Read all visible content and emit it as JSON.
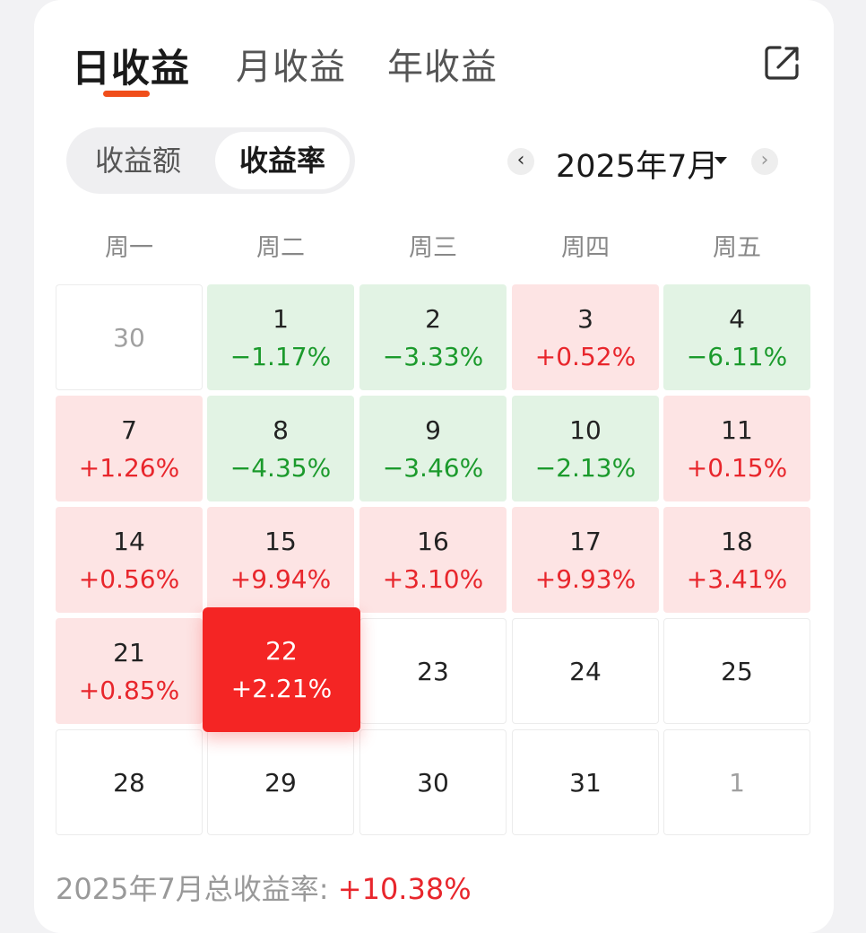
{
  "tabs": [
    {
      "label": "日收益",
      "active": true
    },
    {
      "label": "月收益",
      "active": false
    },
    {
      "label": "年收益",
      "active": false
    }
  ],
  "share_icon": "share-icon",
  "segment": {
    "options": [
      "收益额",
      "收益率"
    ],
    "selected": "收益率"
  },
  "month_nav": {
    "prev_icon": "chevron-left-icon",
    "next_icon": "chevron-right-icon",
    "label": "2025年7月",
    "dropdown_icon": "caret-down-icon"
  },
  "weekdays": [
    "周一",
    "周二",
    "周三",
    "周四",
    "周五"
  ],
  "calendar": [
    [
      {
        "day": "30",
        "pct": "",
        "state": "empty-dim"
      },
      {
        "day": "1",
        "pct": "−1.17%",
        "state": "down"
      },
      {
        "day": "2",
        "pct": "−3.33%",
        "state": "down"
      },
      {
        "day": "3",
        "pct": "+0.52%",
        "state": "up"
      },
      {
        "day": "4",
        "pct": "−6.11%",
        "state": "down"
      }
    ],
    [
      {
        "day": "7",
        "pct": "+1.26%",
        "state": "up"
      },
      {
        "day": "8",
        "pct": "−4.35%",
        "state": "down"
      },
      {
        "day": "9",
        "pct": "−3.46%",
        "state": "down"
      },
      {
        "day": "10",
        "pct": "−2.13%",
        "state": "down"
      },
      {
        "day": "11",
        "pct": "+0.15%",
        "state": "up"
      }
    ],
    [
      {
        "day": "14",
        "pct": "+0.56%",
        "state": "up"
      },
      {
        "day": "15",
        "pct": "+9.94%",
        "state": "up"
      },
      {
        "day": "16",
        "pct": "+3.10%",
        "state": "up"
      },
      {
        "day": "17",
        "pct": "+9.93%",
        "state": "up"
      },
      {
        "day": "18",
        "pct": "+3.41%",
        "state": "up"
      }
    ],
    [
      {
        "day": "21",
        "pct": "+0.85%",
        "state": "up"
      },
      {
        "day": "22",
        "pct": "+2.21%",
        "state": "selected"
      },
      {
        "day": "23",
        "pct": "",
        "state": "empty"
      },
      {
        "day": "24",
        "pct": "",
        "state": "empty"
      },
      {
        "day": "25",
        "pct": "",
        "state": "empty"
      }
    ],
    [
      {
        "day": "28",
        "pct": "",
        "state": "empty"
      },
      {
        "day": "29",
        "pct": "",
        "state": "empty"
      },
      {
        "day": "30",
        "pct": "",
        "state": "empty"
      },
      {
        "day": "31",
        "pct": "",
        "state": "empty"
      },
      {
        "day": "1",
        "pct": "",
        "state": "empty-dim"
      }
    ]
  ],
  "summary": {
    "label": "2025年7月总收益率: ",
    "value": "+10.38%"
  },
  "colors": {
    "accent": "#f04e1a",
    "gain": "#e8262c",
    "loss": "#1b9a2c",
    "gain_bg": "#fde4e4",
    "loss_bg": "#e2f3e4",
    "selected_bg": "#f42524"
  }
}
